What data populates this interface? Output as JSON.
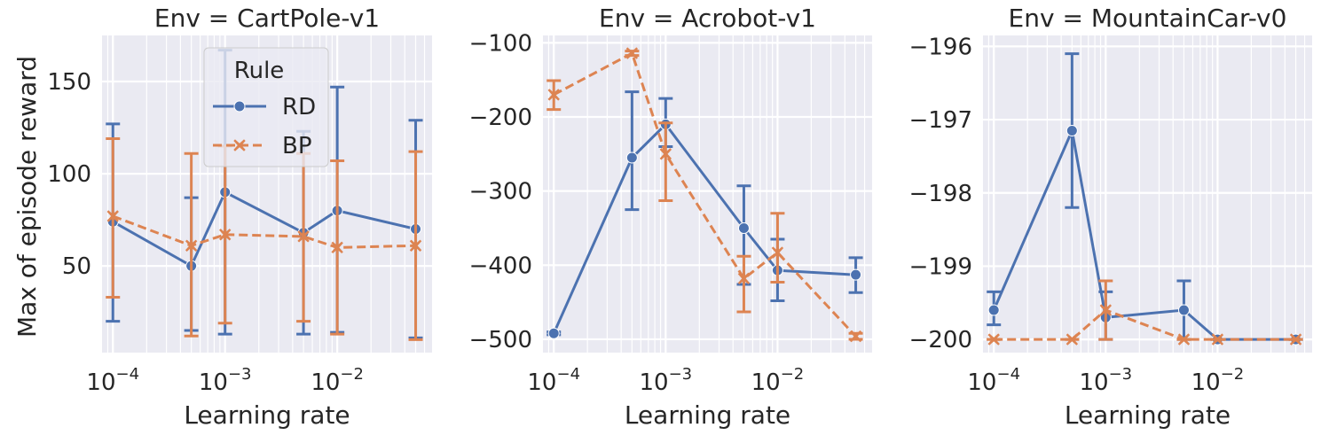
{
  "figure": {
    "ylabel": "Max of episode reward"
  },
  "legend": {
    "title": "Rule",
    "entries": [
      {
        "name": "RD",
        "color": "#4c72b0",
        "marker": "circle",
        "dashed": false
      },
      {
        "name": "BP",
        "color": "#dd8452",
        "marker": "x",
        "dashed": true
      }
    ]
  },
  "chart_data": [
    {
      "type": "line",
      "title": "Env = CartPole-v1",
      "xlabel": "Learning rate",
      "xscale": "log",
      "xlim": [
        8e-05,
        0.07
      ],
      "ylim": [
        3,
        175
      ],
      "yticks": [
        50,
        100,
        150
      ],
      "xticks": [
        0.0001,
        0.001,
        0.01
      ],
      "xtick_labels": [
        {
          "base": "10",
          "exp": "−4"
        },
        {
          "base": "10",
          "exp": "−3"
        },
        {
          "base": "10",
          "exp": "−2"
        }
      ],
      "x": [
        0.0001,
        0.0005,
        0.001,
        0.005,
        0.01,
        0.05
      ],
      "series": [
        {
          "name": "RD",
          "y": [
            74,
            50,
            90,
            68,
            80,
            70
          ],
          "lower": [
            20,
            15,
            13,
            13,
            14,
            11
          ],
          "upper": [
            127,
            87,
            167,
            123,
            147,
            129
          ]
        },
        {
          "name": "BP",
          "y": [
            77,
            61,
            67,
            66,
            60,
            61
          ],
          "lower": [
            33,
            12,
            19,
            20,
            13,
            10
          ],
          "upper": [
            119,
            111,
            115,
            111,
            107,
            112
          ]
        }
      ]
    },
    {
      "type": "line",
      "title": "Env = Acrobot-v1",
      "xlabel": "Learning rate",
      "xscale": "log",
      "xlim": [
        8e-05,
        0.07
      ],
      "ylim": [
        -518,
        -90
      ],
      "yticks": [
        -500,
        -400,
        -300,
        -200,
        -100
      ],
      "ytick_labels": [
        "−500",
        "−400",
        "−300",
        "−200",
        "−100"
      ],
      "xticks": [
        0.0001,
        0.001,
        0.01
      ],
      "xtick_labels": [
        {
          "base": "10",
          "exp": "−4"
        },
        {
          "base": "10",
          "exp": "−3"
        },
        {
          "base": "10",
          "exp": "−2"
        }
      ],
      "x": [
        0.0001,
        0.0005,
        0.001,
        0.005,
        0.01,
        0.05
      ],
      "series": [
        {
          "name": "RD",
          "y": [
            -492,
            -255,
            -210,
            -350,
            -407,
            -413
          ],
          "lower": [
            -494,
            -325,
            -240,
            -426,
            -448,
            -437
          ],
          "upper": [
            -490,
            -166,
            -175,
            -293,
            -365,
            -390
          ]
        },
        {
          "name": "BP",
          "y": [
            -170,
            -114,
            -250,
            -418,
            -383,
            -496
          ],
          "lower": [
            -190,
            -117,
            -313,
            -463,
            -423,
            -500
          ],
          "upper": [
            -151,
            -111,
            -208,
            -388,
            -330,
            -492
          ]
        }
      ]
    },
    {
      "type": "line",
      "title": "Env = MountainCar-v0",
      "xlabel": "Learning rate",
      "xscale": "log",
      "xlim": [
        8e-05,
        0.07
      ],
      "ylim": [
        -200.18,
        -195.85
      ],
      "yticks": [
        -200,
        -199,
        -198,
        -197,
        -196
      ],
      "ytick_labels": [
        "−200",
        "−199",
        "−198",
        "−197",
        "−196"
      ],
      "xticks": [
        0.0001,
        0.001,
        0.01
      ],
      "xtick_labels": [
        {
          "base": "10",
          "exp": "−4"
        },
        {
          "base": "10",
          "exp": "−3"
        },
        {
          "base": "10",
          "exp": "−2"
        }
      ],
      "x": [
        0.0001,
        0.0005,
        0.001,
        0.005,
        0.01,
        0.05
      ],
      "series": [
        {
          "name": "RD",
          "y": [
            -199.6,
            -197.15,
            -199.7,
            -199.6,
            -200,
            -200
          ],
          "lower": [
            -199.8,
            -198.2,
            -200,
            -200,
            -200,
            -200
          ],
          "upper": [
            -199.35,
            -196.1,
            -199.35,
            -199.2,
            -200,
            -200
          ]
        },
        {
          "name": "BP",
          "y": [
            -200,
            -200,
            -199.6,
            -200,
            -200,
            -200
          ],
          "lower": [
            -200,
            -200,
            -200,
            -200,
            -200,
            -200
          ],
          "upper": [
            -200,
            -200,
            -199.2,
            -200,
            -200,
            -200
          ]
        }
      ]
    }
  ]
}
